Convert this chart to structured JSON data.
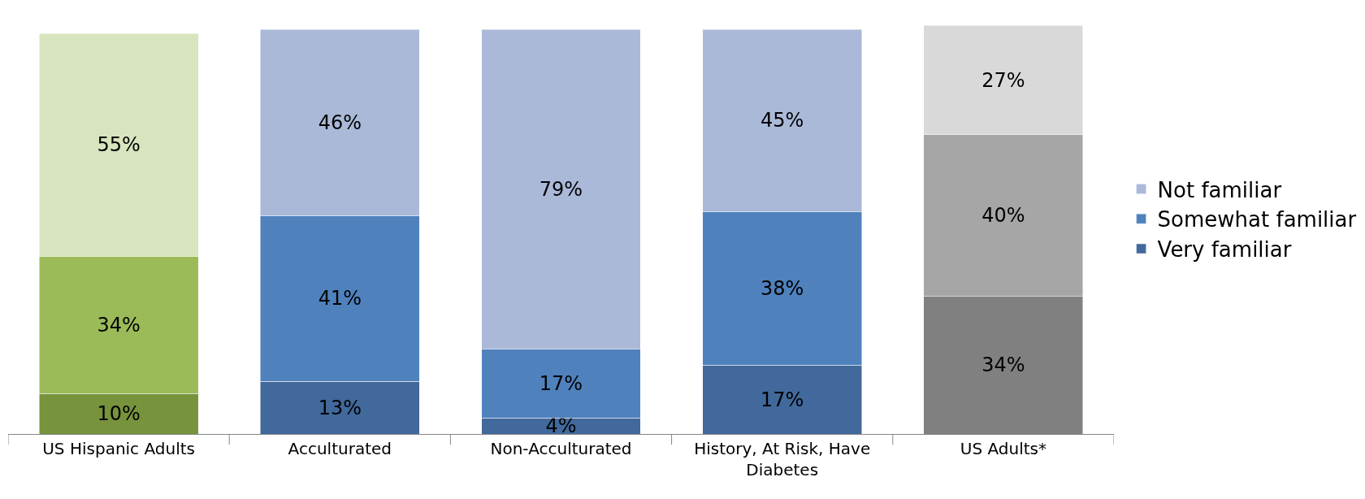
{
  "chart_data": {
    "type": "bar",
    "stacked": true,
    "legend": "right",
    "categories": [
      "US Hispanic Adults",
      "Acculturated",
      "Non-Acculturated",
      "History, At Risk, Have Diabetes",
      "US Adults*"
    ],
    "series": [
      {
        "name": "Very familiar",
        "color": "#41699b",
        "colors": [
          "#77933c",
          "#41699b",
          "#41699b",
          "#41699b",
          "#808080"
        ],
        "values": [
          10,
          13,
          4,
          17,
          34
        ],
        "value_labels": [
          "10%",
          "13%",
          "4%",
          "17%",
          "34%"
        ]
      },
      {
        "name": "Somewhat familiar",
        "color": "#4f81bd",
        "colors": [
          "#9bbb59",
          "#4f81bd",
          "#4f81bd",
          "#4f81bd",
          "#a6a6a6"
        ],
        "values": [
          34,
          41,
          17,
          38,
          40
        ],
        "value_labels": [
          "34%",
          "41%",
          "17%",
          "38%",
          "40%"
        ]
      },
      {
        "name": "Not familiar",
        "color": "#aab9d8",
        "colors": [
          "#d7e4bd",
          "#aab9d8",
          "#aab9d8",
          "#aab9d8",
          "#d9d9d9"
        ],
        "values": [
          55,
          46,
          79,
          45,
          27
        ],
        "value_labels": [
          "55%",
          "46%",
          "79%",
          "45%",
          "27%"
        ]
      }
    ]
  }
}
